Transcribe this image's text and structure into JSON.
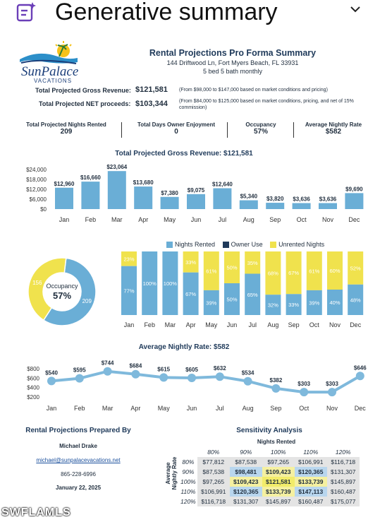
{
  "header": {
    "title": "Generative summary",
    "icon": "sparkle-list-icon",
    "chevron": "chevron-down-icon"
  },
  "logo": {
    "brand": "SunPalace",
    "sub": "VACATIONS"
  },
  "summary": {
    "title": "Rental Projections Pro Forma Summary",
    "address": "144 Driftwood Ln, Fort Myers Beach, FL 33931",
    "unit": "5 bed 5 bath monthly",
    "gross_label": "Total Projected Gross Revenue:",
    "gross_value": "$121,581",
    "gross_note": "(From $98,000 to $147,000 based on market conditions and pricing)",
    "net_label": "Total Projected NET proceeds:",
    "net_value": "$103,344",
    "net_note": "(From $84,000 to $125,000 based on market conditions, pricing, and net of 15% commission)"
  },
  "kpis": [
    {
      "label": "Total Projected Nights Rented",
      "value": "209"
    },
    {
      "label": "Total Days Owner Enjoyment",
      "value": "0"
    },
    {
      "label": "Occupancy",
      "value": "57%"
    },
    {
      "label": "Average Nightly Rate",
      "value": "$582"
    }
  ],
  "colors": {
    "bar": "#6aaed6",
    "navy": "#1f3a5a",
    "yellow": "#f0e24d",
    "line": "#7fb9dc"
  },
  "chart_data": [
    {
      "type": "bar",
      "title": "Total Projected Gross Revenue: $121,581",
      "categories": [
        "Jan",
        "Feb",
        "Mar",
        "Apr",
        "May",
        "Jun",
        "Jul",
        "Aug",
        "Sep",
        "Oct",
        "Nov",
        "Dec"
      ],
      "values": [
        12960,
        16660,
        23064,
        13680,
        7380,
        9075,
        12640,
        5340,
        3820,
        3636,
        3636,
        9690
      ],
      "labels": [
        "$12,960",
        "$16,660",
        "$23,064",
        "$13,680",
        "$7,380",
        "$9,075",
        "$12,640",
        "$5,340",
        "$3,820",
        "$3,636",
        "$3,636",
        "$9,690"
      ],
      "yticks": [
        "$24,000",
        "$18,000",
        "$12,000",
        "$6,000",
        "$0"
      ],
      "ylim": [
        0,
        24000
      ]
    },
    {
      "type": "pie",
      "title": "Occupancy",
      "center_value": "57%",
      "slices": [
        {
          "label": "209",
          "value": 209,
          "color": "#6aaed6"
        },
        {
          "label": "156",
          "value": 156,
          "color": "#f0e24d"
        }
      ]
    },
    {
      "type": "bar",
      "stacked": true,
      "categories": [
        "Jan",
        "Feb",
        "Mar",
        "Apr",
        "May",
        "Jun",
        "Jul",
        "Aug",
        "Sep",
        "Oct",
        "Nov",
        "Dec"
      ],
      "series": [
        {
          "name": "Nights Rented",
          "values": [
            77,
            100,
            100,
            67,
            39,
            50,
            65,
            32,
            33,
            39,
            40,
            48
          ],
          "color": "#6aaed6"
        },
        {
          "name": "Owner Use",
          "values": [
            0,
            0,
            0,
            0,
            0,
            0,
            0,
            0,
            0,
            0,
            0,
            0
          ],
          "color": "#1f3a5a"
        },
        {
          "name": "Unrented Nights",
          "values": [
            23,
            0,
            0,
            33,
            61,
            50,
            35,
            68,
            67,
            61,
            60,
            52
          ],
          "color": "#f0e24d"
        }
      ],
      "ylim": [
        0,
        100
      ],
      "legend": "top"
    },
    {
      "type": "line",
      "title": "Average Nightly Rate: $582",
      "categories": [
        "Jan",
        "Feb",
        "Mar",
        "Apr",
        "May",
        "Jun",
        "Jul",
        "Aug",
        "Sep",
        "Oct",
        "Nov",
        "Dec"
      ],
      "values": [
        540,
        595,
        744,
        684,
        615,
        605,
        632,
        534,
        382,
        303,
        303,
        646
      ],
      "labels": [
        "$540",
        "$595",
        "$744",
        "$684",
        "$615",
        "$605",
        "$632",
        "$534",
        "$382",
        "$303",
        "$303",
        "$646"
      ],
      "yticks": [
        "$800",
        "$600",
        "$400",
        "$200"
      ],
      "ylim": [
        200,
        800
      ]
    }
  ],
  "prepared": {
    "title": "Rental Projections Prepared By",
    "name": "Michael Drake",
    "email": "michael@sunpalacevacations.net",
    "phone": "865-228-6996",
    "date": "January 22, 2025"
  },
  "sensitivity": {
    "title": "Sensitivity Analysis",
    "col_title": "Nights Rented",
    "row_title": "Average Nightly Rate",
    "cols": [
      "80%",
      "90%",
      "100%",
      "110%",
      "120%"
    ],
    "rows": [
      {
        "label": "80%",
        "cells": [
          "$77,812",
          "$87,538",
          "$97,265",
          "$106,991",
          "$116,718"
        ]
      },
      {
        "label": "90%",
        "cells": [
          "$87,538",
          "$98,481",
          "$109,423",
          "$120,365",
          "$131,307"
        ]
      },
      {
        "label": "100%",
        "cells": [
          "$97,265",
          "$109,423",
          "$121,581",
          "$133,739",
          "$145,897"
        ]
      },
      {
        "label": "110%",
        "cells": [
          "$106,991",
          "$120,365",
          "$133,739",
          "$147,113",
          "$160,487"
        ]
      },
      {
        "label": "120%",
        "cells": [
          "$116,718",
          "$131,307",
          "$145,897",
          "$160,487",
          "$175,077"
        ]
      }
    ],
    "highlight": [
      [
        1,
        1
      ],
      [
        1,
        2
      ],
      [
        1,
        3
      ],
      [
        2,
        1
      ],
      [
        2,
        2
      ],
      [
        2,
        3
      ],
      [
        3,
        1
      ],
      [
        3,
        2
      ],
      [
        3,
        3
      ]
    ]
  },
  "watermark": "SWFLAMLS"
}
